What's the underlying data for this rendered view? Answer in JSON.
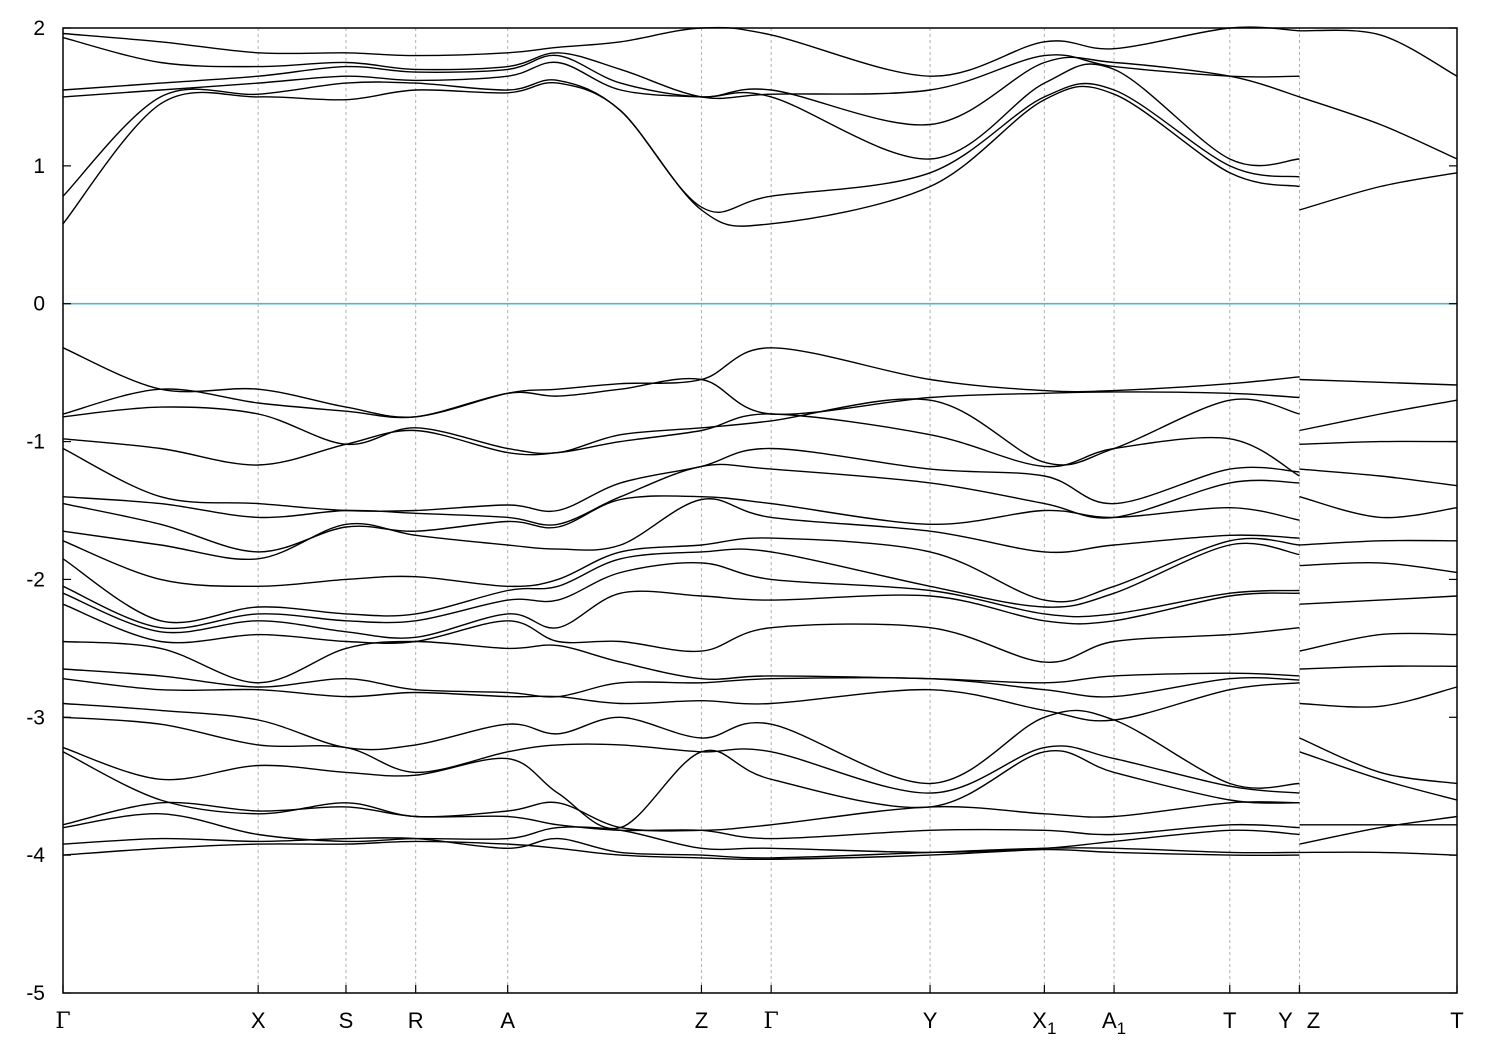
{
  "chart_data": {
    "type": "line",
    "title": "",
    "xlabel": "",
    "ylabel": "",
    "ylim": [
      -5,
      2
    ],
    "yticks": [
      2,
      1,
      0,
      -1,
      -2,
      -3,
      -4,
      -5
    ],
    "fermi_level": 0,
    "grid": "vertical dashed lines at k-points",
    "colors": {
      "bands": "#000000",
      "fermi": "#55b4c8",
      "grid": "#b0b0b0"
    },
    "kpoints": [
      {
        "label": "Γ",
        "sub": "",
        "x": 0
      },
      {
        "label": "X",
        "sub": "",
        "x": 1.4
      },
      {
        "label": "S",
        "sub": "",
        "x": 2.03
      },
      {
        "label": "R",
        "sub": "",
        "x": 2.53
      },
      {
        "label": "A",
        "sub": "",
        "x": 3.19
      },
      {
        "label": "Z",
        "sub": "",
        "x": 4.58
      },
      {
        "label": "Γ",
        "sub": "",
        "x": 5.08
      },
      {
        "label": "Y",
        "sub": "",
        "x": 6.22
      },
      {
        "label": "X",
        "sub": "1",
        "x": 7.04
      },
      {
        "label": "A",
        "sub": "1",
        "x": 7.54
      },
      {
        "label": "T",
        "sub": "",
        "x": 8.37
      },
      {
        "label": "Y",
        "sub": "",
        "x": 8.87
      },
      {
        "label": "Z",
        "sub": "",
        "x": 8.87
      },
      {
        "label": "T",
        "sub": "",
        "x": 10.0
      }
    ],
    "xlim": [
      0,
      10.0
    ],
    "series": [
      {
        "values": [
          0.58,
          1.45,
          1.5,
          1.48,
          1.55,
          1.53,
          1.6,
          1.4,
          0.68,
          0.58,
          0.85,
          1.48,
          1.52,
          0.95,
          0.85
        ]
      },
      {
        "values": [
          0.78,
          1.5,
          1.52,
          1.6,
          1.6,
          1.55,
          1.62,
          1.4,
          0.7,
          0.78,
          0.95,
          1.5,
          1.55,
          1.0,
          0.92
        ]
      },
      {
        "values": [
          1.5,
          1.55,
          1.6,
          1.65,
          1.62,
          1.65,
          1.75,
          1.55,
          1.5,
          1.5,
          1.05,
          1.6,
          1.7,
          1.05,
          1.05
        ]
      },
      {
        "values": [
          1.55,
          1.6,
          1.65,
          1.72,
          1.68,
          1.7,
          1.8,
          1.6,
          1.5,
          1.55,
          1.3,
          1.75,
          1.75,
          1.65,
          1.5
        ]
      },
      {
        "values": [
          1.93,
          1.75,
          1.72,
          1.75,
          1.7,
          1.72,
          1.82,
          1.7,
          1.5,
          1.52,
          1.55,
          1.8,
          1.72,
          1.65,
          1.65
        ]
      },
      {
        "values": [
          1.96,
          1.9,
          1.82,
          1.82,
          1.8,
          1.82,
          1.86,
          1.9,
          2.0,
          1.95,
          1.65,
          1.9,
          1.85,
          2.0,
          1.98
        ]
      },
      {
        "values": [
          -0.32,
          -0.62,
          -0.62,
          -0.75,
          -0.82,
          -0.65,
          -0.62,
          -0.58,
          -0.55,
          -0.32,
          -0.55,
          -0.63,
          -0.63,
          -0.58,
          -0.53
        ]
      },
      {
        "values": [
          -0.8,
          -0.62,
          -0.72,
          -0.78,
          -0.82,
          -0.65,
          -0.67,
          -0.62,
          -0.55,
          -0.8,
          -0.68,
          -0.65,
          -0.64,
          -0.65,
          -0.68
        ]
      },
      {
        "values": [
          -0.82,
          -0.75,
          -0.8,
          -1.02,
          -0.9,
          -1.05,
          -1.08,
          -0.95,
          -0.9,
          -0.85,
          -0.7,
          -1.15,
          -1.05,
          -0.7,
          -0.8
        ]
      },
      {
        "values": [
          -0.98,
          -1.05,
          -1.17,
          -1.02,
          -0.92,
          -1.08,
          -1.08,
          -1.0,
          -0.92,
          -0.8,
          -0.95,
          -1.18,
          -1.05,
          -0.98,
          -1.25
        ]
      },
      {
        "values": [
          -1.05,
          -1.4,
          -1.45,
          -1.5,
          -1.5,
          -1.46,
          -1.5,
          -1.3,
          -1.18,
          -1.05,
          -1.2,
          -1.25,
          -1.45,
          -1.2,
          -1.22
        ]
      },
      {
        "values": [
          -1.4,
          -1.45,
          -1.55,
          -1.5,
          -1.52,
          -1.55,
          -1.6,
          -1.4,
          -1.18,
          -1.2,
          -1.3,
          -1.45,
          -1.55,
          -1.3,
          -1.3
        ]
      },
      {
        "values": [
          -1.45,
          -1.6,
          -1.8,
          -1.62,
          -1.65,
          -1.58,
          -1.62,
          -1.42,
          -1.4,
          -1.45,
          -1.6,
          -1.5,
          -1.55,
          -1.48,
          -1.57
        ]
      },
      {
        "values": [
          -1.65,
          -1.75,
          -1.85,
          -1.6,
          -1.68,
          -1.75,
          -1.78,
          -1.75,
          -1.42,
          -1.55,
          -1.65,
          -1.8,
          -1.75,
          -1.68,
          -1.7
        ]
      },
      {
        "values": [
          -1.72,
          -2.0,
          -2.05,
          -2.0,
          -1.98,
          -2.05,
          -2.0,
          -1.8,
          -1.75,
          -1.7,
          -1.8,
          -2.15,
          -2.05,
          -1.72,
          -1.75
        ]
      },
      {
        "values": [
          -1.85,
          -2.3,
          -2.2,
          -2.25,
          -2.25,
          -2.08,
          -2.05,
          -1.85,
          -1.8,
          -1.8,
          -2.05,
          -2.2,
          -2.1,
          -1.75,
          -1.82
        ]
      },
      {
        "values": [
          -2.05,
          -2.35,
          -2.25,
          -2.3,
          -2.3,
          -2.15,
          -2.15,
          -1.95,
          -1.88,
          -2.0,
          -2.08,
          -2.25,
          -2.25,
          -2.1,
          -2.08
        ]
      },
      {
        "values": [
          -2.1,
          -2.38,
          -2.3,
          -2.38,
          -2.42,
          -2.25,
          -2.35,
          -2.1,
          -2.12,
          -2.15,
          -2.12,
          -2.3,
          -2.3,
          -2.12,
          -2.1
        ]
      },
      {
        "values": [
          -2.18,
          -2.45,
          -2.4,
          -2.45,
          -2.45,
          -2.3,
          -2.45,
          -2.45,
          -2.52,
          -2.35,
          -2.35,
          -2.6,
          -2.45,
          -2.4,
          -2.35
        ]
      },
      {
        "values": [
          -2.45,
          -2.5,
          -2.75,
          -2.5,
          -2.45,
          -2.5,
          -2.48,
          -2.6,
          -2.72,
          -2.7,
          -2.72,
          -2.75,
          -2.7,
          -2.68,
          -2.7
        ]
      },
      {
        "values": [
          -2.65,
          -2.7,
          -2.78,
          -2.72,
          -2.8,
          -2.82,
          -2.85,
          -2.75,
          -2.75,
          -2.72,
          -2.72,
          -2.8,
          -2.85,
          -2.72,
          -2.73
        ]
      },
      {
        "values": [
          -2.72,
          -2.8,
          -2.8,
          -2.85,
          -2.82,
          -2.85,
          -2.85,
          -2.9,
          -2.88,
          -2.9,
          -2.8,
          -2.95,
          -3.02,
          -2.8,
          -2.75
        ]
      },
      {
        "values": [
          -2.9,
          -2.95,
          -3.02,
          -3.22,
          -3.2,
          -3.05,
          -3.12,
          -3.0,
          -3.15,
          -3.05,
          -3.48,
          -3.0,
          -3.02,
          -3.48,
          -3.48
        ]
      },
      {
        "values": [
          -3.0,
          -3.05,
          -3.2,
          -3.22,
          -3.4,
          -3.25,
          -3.2,
          -3.2,
          -3.25,
          -3.25,
          -3.55,
          -3.22,
          -3.3,
          -3.5,
          -3.55
        ]
      },
      {
        "values": [
          -3.22,
          -3.45,
          -3.35,
          -3.4,
          -3.42,
          -3.3,
          -3.55,
          -3.8,
          -3.25,
          -3.45,
          -3.65,
          -3.25,
          -3.4,
          -3.6,
          -3.62
        ]
      },
      {
        "values": [
          -3.25,
          -3.6,
          -3.7,
          -3.62,
          -3.72,
          -3.68,
          -3.62,
          -3.8,
          -3.82,
          -3.78,
          -3.65,
          -3.7,
          -3.72,
          -3.62,
          -3.62
        ]
      },
      {
        "values": [
          -3.78,
          -3.62,
          -3.68,
          -3.65,
          -3.72,
          -3.72,
          -3.78,
          -3.82,
          -3.82,
          -3.88,
          -3.82,
          -3.82,
          -3.85,
          -3.78,
          -3.8
        ]
      },
      {
        "values": [
          -3.8,
          -3.7,
          -3.85,
          -3.9,
          -3.88,
          -3.88,
          -3.8,
          -3.82,
          -3.95,
          -3.95,
          -3.98,
          -3.95,
          -3.9,
          -3.82,
          -3.85
        ]
      },
      {
        "values": [
          -3.92,
          -3.88,
          -3.9,
          -3.88,
          -3.88,
          -3.95,
          -3.88,
          -3.98,
          -4.0,
          -4.02,
          -3.98,
          -3.95,
          -3.95,
          -3.98,
          -3.98
        ]
      },
      {
        "values": [
          -4.0,
          -3.95,
          -3.92,
          -3.92,
          -3.9,
          -3.92,
          -3.95,
          -4.0,
          -4.02,
          -4.03,
          -4.0,
          -3.96,
          -3.98,
          -4.0,
          -4.0
        ]
      }
    ],
    "series_x": [
      0,
      0.7,
      1.4,
      2.03,
      2.53,
      3.19,
      3.55,
      4.0,
      4.58,
      5.08,
      6.22,
      7.04,
      7.54,
      8.37,
      8.87
    ],
    "right_panel": {
      "x": [
        8.87,
        9.45,
        10.0
      ],
      "bands": [
        [
          0.68,
          0.85,
          0.95
        ],
        [
          1.5,
          1.3,
          1.05
        ],
        [
          1.98,
          1.95,
          1.65
        ],
        [
          -0.55,
          -0.57,
          -0.59
        ],
        [
          -0.92,
          -0.8,
          -0.7
        ],
        [
          -1.02,
          -1.0,
          -1.0
        ],
        [
          -1.2,
          -1.25,
          -1.32
        ],
        [
          -1.4,
          -1.55,
          -1.48
        ],
        [
          -1.75,
          -1.72,
          -1.72
        ],
        [
          -1.9,
          -1.88,
          -1.95
        ],
        [
          -2.18,
          -2.15,
          -2.12
        ],
        [
          -2.52,
          -2.4,
          -2.4
        ],
        [
          -2.65,
          -2.63,
          -2.63
        ],
        [
          -2.9,
          -2.92,
          -2.78
        ],
        [
          -3.15,
          -3.4,
          -3.48
        ],
        [
          -3.25,
          -3.45,
          -3.6
        ],
        [
          -3.78,
          -3.78,
          -3.78
        ],
        [
          -3.92,
          -3.8,
          -3.72
        ],
        [
          -3.98,
          -3.98,
          -4.0
        ]
      ]
    }
  }
}
